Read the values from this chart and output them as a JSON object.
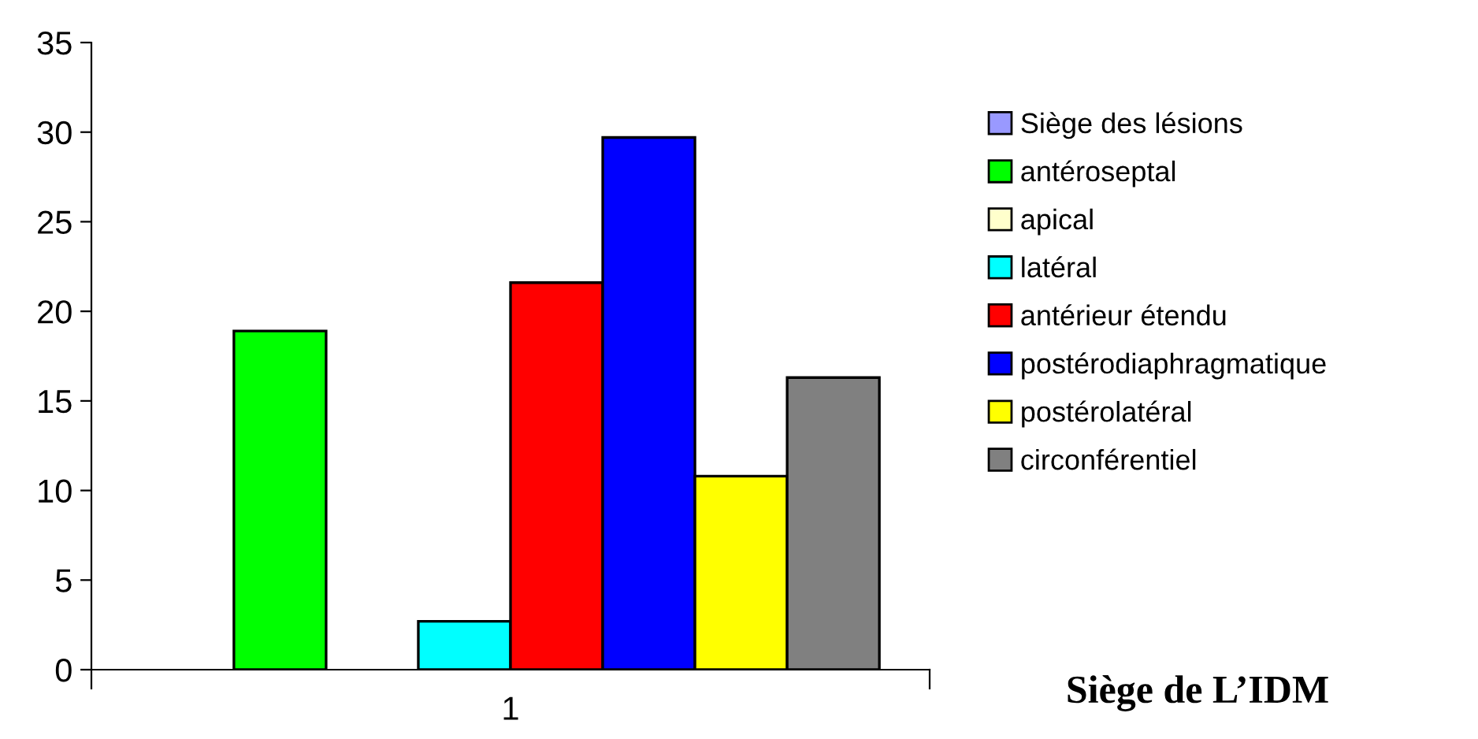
{
  "chart_data": {
    "type": "bar",
    "title": "Siège de L’IDM",
    "categories": [
      "1"
    ],
    "series": [
      {
        "name": "Siège des lésions",
        "color": "#9999ff",
        "values": [
          null
        ]
      },
      {
        "name": "antéroseptal",
        "color": "#00ff00",
        "values": [
          18.9
        ]
      },
      {
        "name": "apical",
        "color": "#ffffcc",
        "values": [
          null
        ]
      },
      {
        "name": "latéral",
        "color": "#00ffff",
        "values": [
          2.7
        ]
      },
      {
        "name": "antérieur étendu",
        "color": "#ff0000",
        "values": [
          21.6
        ]
      },
      {
        "name": "postérodiaphragmatique",
        "color": "#0000ff",
        "values": [
          29.7
        ]
      },
      {
        "name": "postérolatéral",
        "color": "#ffff00",
        "values": [
          10.8
        ]
      },
      {
        "name": "circonférentiel",
        "color": "#808080",
        "values": [
          16.3
        ]
      }
    ],
    "ylim": [
      0,
      35
    ],
    "yticks": [
      0,
      5,
      10,
      15,
      20,
      25,
      30,
      35
    ],
    "grid": false,
    "legend": "right"
  }
}
